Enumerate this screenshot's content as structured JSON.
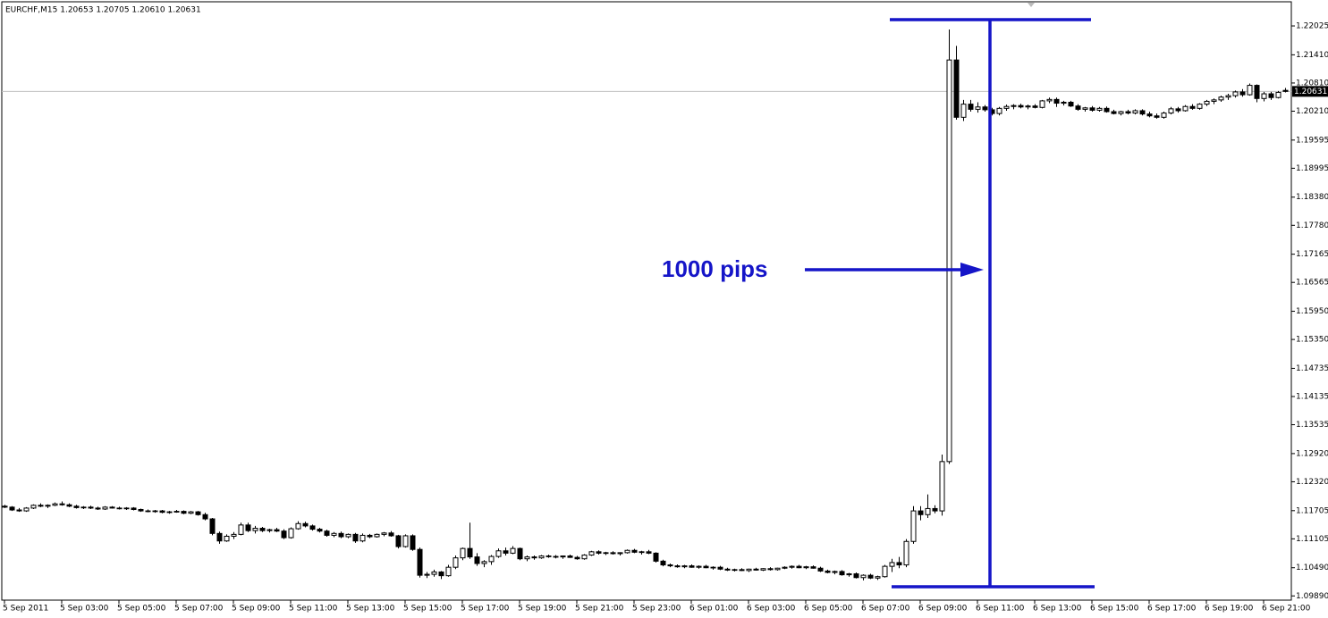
{
  "chart_data": {
    "type": "candlestick",
    "header": "EURCHF,M15  1.20653 1.20705 1.20610 1.20631",
    "annotation": "1000 pips",
    "bid": 1.20631,
    "ylim": [
      1.098,
      1.2252
    ],
    "yticks": [
      1.22025,
      {
        "value": 1.2141,
        "label": "1.21410"
      },
      {
        "value": 1.2081,
        "label": "1.20810"
      },
      {
        "value": 1.2021,
        "label": "1.20210"
      },
      1.19595,
      1.18995,
      {
        "value": 1.1838,
        "label": "1.18380"
      },
      {
        "value": 1.1778,
        "label": "1.17780"
      },
      1.17165,
      1.16565,
      {
        "value": 1.1595,
        "label": "1.15950"
      },
      {
        "value": 1.1535,
        "label": "1.15350"
      },
      1.14735,
      1.14135,
      1.13535,
      {
        "value": 1.1292,
        "label": "1.12920"
      },
      {
        "value": 1.1232,
        "label": "1.12320"
      },
      1.11705,
      1.11105,
      {
        "value": 1.1049,
        "label": "1.10490"
      },
      {
        "value": 1.0989,
        "label": "1.09890"
      }
    ],
    "xlim": [
      0,
      180
    ],
    "xticks": [
      {
        "value": 0,
        "label": "5 Sep 2011"
      },
      {
        "value": 8,
        "label": "5 Sep 03:00"
      },
      {
        "value": 16,
        "label": "5 Sep 05:00"
      },
      {
        "value": 24,
        "label": "5 Sep 07:00"
      },
      {
        "value": 32,
        "label": "5 Sep 09:00"
      },
      {
        "value": 40,
        "label": "5 Sep 11:00"
      },
      {
        "value": 48,
        "label": "5 Sep 13:00"
      },
      {
        "value": 56,
        "label": "5 Sep 15:00"
      },
      {
        "value": 64,
        "label": "5 Sep 17:00"
      },
      {
        "value": 72,
        "label": "5 Sep 19:00"
      },
      {
        "value": 80,
        "label": "5 Sep 21:00"
      },
      {
        "value": 88,
        "label": "5 Sep 23:00"
      },
      {
        "value": 96,
        "label": "6 Sep 01:00"
      },
      {
        "value": 104,
        "label": "6 Sep 03:00"
      },
      {
        "value": 112,
        "label": "6 Sep 05:00"
      },
      {
        "value": 120,
        "label": "6 Sep 07:00"
      },
      {
        "value": 128,
        "label": "6 Sep 09:00"
      },
      {
        "value": 136,
        "label": "6 Sep 11:00"
      },
      {
        "value": 144,
        "label": "6 Sep 13:00"
      },
      {
        "value": 152,
        "label": "6 Sep 15:00"
      },
      {
        "value": 160,
        "label": "6 Sep 17:00"
      },
      {
        "value": 168,
        "label": "6 Sep 19:00"
      },
      {
        "value": 176,
        "label": "6 Sep 21:00"
      }
    ],
    "ohlc": [
      [
        1.118,
        1.1183,
        1.1176,
        1.1178
      ],
      [
        1.1178,
        1.118,
        1.117,
        1.1172
      ],
      [
        1.1172,
        1.1176,
        1.1168,
        1.117
      ],
      [
        1.117,
        1.1178,
        1.1168,
        1.1176
      ],
      [
        1.1176,
        1.1184,
        1.1174,
        1.1182
      ],
      [
        1.1182,
        1.1186,
        1.1178,
        1.118
      ],
      [
        1.118,
        1.1184,
        1.1176,
        1.1182
      ],
      [
        1.1182,
        1.1188,
        1.118,
        1.1185
      ],
      [
        1.1185,
        1.119,
        1.1181,
        1.1183
      ],
      [
        1.1183,
        1.1186,
        1.1178,
        1.118
      ],
      [
        1.118,
        1.1183,
        1.1175,
        1.1177
      ],
      [
        1.1177,
        1.118,
        1.1174,
        1.1178
      ],
      [
        1.1178,
        1.1181,
        1.1174,
        1.1176
      ],
      [
        1.1176,
        1.1179,
        1.1172,
        1.1174
      ],
      [
        1.1174,
        1.118,
        1.1172,
        1.1178
      ],
      [
        1.1178,
        1.118,
        1.1175,
        1.1176
      ],
      [
        1.1176,
        1.1179,
        1.1173,
        1.1175
      ],
      [
        1.1175,
        1.1178,
        1.1172,
        1.1176
      ],
      [
        1.1176,
        1.1178,
        1.1171,
        1.1173
      ],
      [
        1.1173,
        1.1175,
        1.1168,
        1.117
      ],
      [
        1.117,
        1.1173,
        1.1167,
        1.1169
      ],
      [
        1.1169,
        1.1172,
        1.1166,
        1.117
      ],
      [
        1.117,
        1.1172,
        1.1165,
        1.1167
      ],
      [
        1.1167,
        1.117,
        1.1164,
        1.1168
      ],
      [
        1.1168,
        1.1172,
        1.1166,
        1.1169
      ],
      [
        1.1169,
        1.1171,
        1.1163,
        1.1165
      ],
      [
        1.1165,
        1.117,
        1.1163,
        1.1168
      ],
      [
        1.1168,
        1.117,
        1.116,
        1.1162
      ],
      [
        1.1162,
        1.1166,
        1.115,
        1.1153
      ],
      [
        1.1153,
        1.1155,
        1.1118,
        1.1122
      ],
      [
        1.1122,
        1.1126,
        1.11,
        1.1106
      ],
      [
        1.1106,
        1.112,
        1.1104,
        1.1116
      ],
      [
        1.1116,
        1.1125,
        1.111,
        1.112
      ],
      [
        1.112,
        1.1145,
        1.1118,
        1.114
      ],
      [
        1.114,
        1.1145,
        1.1125,
        1.1128
      ],
      [
        1.1128,
        1.1138,
        1.1122,
        1.1133
      ],
      [
        1.1133,
        1.1136,
        1.1125,
        1.1128
      ],
      [
        1.1128,
        1.1132,
        1.1124,
        1.113
      ],
      [
        1.113,
        1.1134,
        1.1125,
        1.1127
      ],
      [
        1.1127,
        1.1131,
        1.111,
        1.1113
      ],
      [
        1.1113,
        1.1135,
        1.1111,
        1.1132
      ],
      [
        1.1132,
        1.1148,
        1.113,
        1.1143
      ],
      [
        1.1143,
        1.1147,
        1.1135,
        1.1138
      ],
      [
        1.1138,
        1.1141,
        1.1128,
        1.1131
      ],
      [
        1.1131,
        1.1134,
        1.1124,
        1.1127
      ],
      [
        1.1127,
        1.113,
        1.1115,
        1.1118
      ],
      [
        1.1118,
        1.1125,
        1.1114,
        1.1122
      ],
      [
        1.1122,
        1.1126,
        1.1112,
        1.1115
      ],
      [
        1.1115,
        1.1122,
        1.1112,
        1.112
      ],
      [
        1.112,
        1.1123,
        1.1102,
        1.1106
      ],
      [
        1.1106,
        1.1122,
        1.1103,
        1.1118
      ],
      [
        1.1118,
        1.1121,
        1.1112,
        1.1115
      ],
      [
        1.1115,
        1.1122,
        1.1113,
        1.112
      ],
      [
        1.112,
        1.1125,
        1.1116,
        1.1123
      ],
      [
        1.1123,
        1.1127,
        1.1115,
        1.1117
      ],
      [
        1.1117,
        1.1119,
        1.109,
        1.1094
      ],
      [
        1.1094,
        1.112,
        1.1092,
        1.1117
      ],
      [
        1.1117,
        1.112,
        1.1085,
        1.1088
      ],
      [
        1.1088,
        1.1092,
        1.1028,
        1.1033
      ],
      [
        1.1033,
        1.104,
        1.1027,
        1.1035
      ],
      [
        1.1035,
        1.1045,
        1.103,
        1.104
      ],
      [
        1.104,
        1.1042,
        1.1025,
        1.1032
      ],
      [
        1.1032,
        1.1055,
        1.103,
        1.105
      ],
      [
        1.105,
        1.1075,
        1.1046,
        1.107
      ],
      [
        1.107,
        1.1092,
        1.1065,
        1.109
      ],
      [
        1.109,
        1.1145,
        1.1068,
        1.1072
      ],
      [
        1.1072,
        1.108,
        1.1053,
        1.1058
      ],
      [
        1.1058,
        1.1065,
        1.105,
        1.1062
      ],
      [
        1.1062,
        1.1076,
        1.1055,
        1.1073
      ],
      [
        1.1073,
        1.109,
        1.107,
        1.1085
      ],
      [
        1.1085,
        1.1092,
        1.1075,
        1.108
      ],
      [
        1.108,
        1.1095,
        1.1078,
        1.109
      ],
      [
        1.109,
        1.1092,
        1.1065,
        1.1068
      ],
      [
        1.1068,
        1.1075,
        1.1063,
        1.1072
      ],
      [
        1.1072,
        1.1075,
        1.1066,
        1.107
      ],
      [
        1.107,
        1.1076,
        1.1068,
        1.1074
      ],
      [
        1.1074,
        1.1077,
        1.107,
        1.1073
      ],
      [
        1.1073,
        1.1076,
        1.1069,
        1.1072
      ],
      [
        1.1072,
        1.1075,
        1.1068,
        1.1074
      ],
      [
        1.1074,
        1.1077,
        1.107,
        1.1071
      ],
      [
        1.1071,
        1.1074,
        1.1066,
        1.1068
      ],
      [
        1.1068,
        1.1078,
        1.1066,
        1.1076
      ],
      [
        1.1076,
        1.1085,
        1.1074,
        1.1083
      ],
      [
        1.1083,
        1.1086,
        1.1077,
        1.108
      ],
      [
        1.108,
        1.1083,
        1.1076,
        1.1081
      ],
      [
        1.1081,
        1.1084,
        1.1077,
        1.1079
      ],
      [
        1.1079,
        1.1082,
        1.1075,
        1.1081
      ],
      [
        1.1081,
        1.1088,
        1.1079,
        1.1086
      ],
      [
        1.1086,
        1.1089,
        1.108,
        1.1082
      ],
      [
        1.1082,
        1.1085,
        1.1077,
        1.1083
      ],
      [
        1.1083,
        1.1087,
        1.1078,
        1.108
      ],
      [
        1.108,
        1.1082,
        1.106,
        1.1063
      ],
      [
        1.1063,
        1.1066,
        1.1052,
        1.1055
      ],
      [
        1.1055,
        1.1058,
        1.105,
        1.1053
      ],
      [
        1.1053,
        1.1056,
        1.1049,
        1.1051
      ],
      [
        1.1051,
        1.1055,
        1.1048,
        1.1053
      ],
      [
        1.1053,
        1.1056,
        1.1049,
        1.105
      ],
      [
        1.105,
        1.1054,
        1.1047,
        1.1052
      ],
      [
        1.1052,
        1.1055,
        1.1048,
        1.1049
      ],
      [
        1.1049,
        1.1052,
        1.1045,
        1.105
      ],
      [
        1.105,
        1.1053,
        1.1044,
        1.1046
      ],
      [
        1.1046,
        1.1049,
        1.1042,
        1.1044
      ],
      [
        1.1044,
        1.1047,
        1.1041,
        1.1045
      ],
      [
        1.1045,
        1.1048,
        1.1042,
        1.1043
      ],
      [
        1.1043,
        1.1047,
        1.104,
        1.1046
      ],
      [
        1.1046,
        1.1049,
        1.1043,
        1.1044
      ],
      [
        1.1044,
        1.1048,
        1.1042,
        1.1047
      ],
      [
        1.1047,
        1.105,
        1.1043,
        1.1045
      ],
      [
        1.1045,
        1.1049,
        1.1043,
        1.1048
      ],
      [
        1.1048,
        1.1052,
        1.1046,
        1.105
      ],
      [
        1.105,
        1.1054,
        1.1047,
        1.1052
      ],
      [
        1.1052,
        1.1055,
        1.1048,
        1.1049
      ],
      [
        1.1049,
        1.1053,
        1.1046,
        1.1051
      ],
      [
        1.1051,
        1.1054,
        1.1047,
        1.1048
      ],
      [
        1.1048,
        1.1051,
        1.104,
        1.1042
      ],
      [
        1.1042,
        1.1045,
        1.1037,
        1.1039
      ],
      [
        1.1039,
        1.1043,
        1.1035,
        1.1041
      ],
      [
        1.1041,
        1.1044,
        1.1032,
        1.1034
      ],
      [
        1.1034,
        1.1038,
        1.103,
        1.1036
      ],
      [
        1.1036,
        1.1039,
        1.1026,
        1.1028
      ],
      [
        1.1028,
        1.1035,
        1.1022,
        1.1033
      ],
      [
        1.1033,
        1.1036,
        1.1025,
        1.1027
      ],
      [
        1.1027,
        1.1032,
        1.1023,
        1.103
      ],
      [
        1.103,
        1.1055,
        1.1028,
        1.1052
      ],
      [
        1.1052,
        1.1068,
        1.104,
        1.106
      ],
      [
        1.106,
        1.1072,
        1.1048,
        1.1055
      ],
      [
        1.1055,
        1.111,
        1.105,
        1.1105
      ],
      [
        1.1105,
        1.118,
        1.11,
        1.117
      ],
      [
        1.117,
        1.118,
        1.115,
        1.1162
      ],
      [
        1.1162,
        1.1205,
        1.1155,
        1.1175
      ],
      [
        1.1175,
        1.1182,
        1.1165,
        1.117
      ],
      [
        1.117,
        1.129,
        1.116,
        1.1275
      ],
      [
        1.1275,
        1.2195,
        1.127,
        1.213
      ],
      [
        1.213,
        1.216,
        1.2003,
        1.2008
      ],
      [
        1.2008,
        1.2045,
        1.2,
        1.2036
      ],
      [
        1.2036,
        1.2045,
        1.202,
        1.2025
      ],
      [
        1.2025,
        1.204,
        1.2018,
        1.203
      ],
      [
        1.203,
        1.2034,
        1.202,
        1.2024
      ],
      [
        1.2024,
        1.2028,
        1.2012,
        1.2016
      ],
      [
        1.2016,
        1.203,
        1.2012,
        1.2027
      ],
      [
        1.2027,
        1.2035,
        1.2022,
        1.2031
      ],
      [
        1.2031,
        1.2036,
        1.2025,
        1.2033
      ],
      [
        1.2033,
        1.2037,
        1.2027,
        1.203
      ],
      [
        1.203,
        1.2035,
        1.2025,
        1.2032
      ],
      [
        1.2032,
        1.2036,
        1.2027,
        1.2029
      ],
      [
        1.2029,
        1.2045,
        1.2027,
        1.2043
      ],
      [
        1.2043,
        1.205,
        1.2038,
        1.2046
      ],
      [
        1.2046,
        1.205,
        1.203,
        1.2038
      ],
      [
        1.2038,
        1.2043,
        1.2033,
        1.204
      ],
      [
        1.204,
        1.2043,
        1.203,
        1.2032
      ],
      [
        1.2032,
        1.2036,
        1.2022,
        1.2025
      ],
      [
        1.2025,
        1.203,
        1.202,
        1.2028
      ],
      [
        1.2028,
        1.2032,
        1.202,
        1.2023
      ],
      [
        1.2023,
        1.203,
        1.202,
        1.2027
      ],
      [
        1.2027,
        1.2031,
        1.2018,
        1.202
      ],
      [
        1.202,
        1.2024,
        1.2014,
        1.2016
      ],
      [
        1.2016,
        1.2022,
        1.2012,
        1.202
      ],
      [
        1.202,
        1.2024,
        1.2014,
        1.2017
      ],
      [
        1.2017,
        1.2025,
        1.2014,
        1.2022
      ],
      [
        1.2022,
        1.2025,
        1.2012,
        1.2015
      ],
      [
        1.2015,
        1.202,
        1.2008,
        1.2011
      ],
      [
        1.2011,
        1.2016,
        1.2005,
        1.2008
      ],
      [
        1.2008,
        1.202,
        1.2005,
        1.2017
      ],
      [
        1.2017,
        1.203,
        1.2014,
        1.2026
      ],
      [
        1.2026,
        1.203,
        1.2018,
        1.2022
      ],
      [
        1.2022,
        1.2034,
        1.202,
        1.2031
      ],
      [
        1.2031,
        1.2036,
        1.2024,
        1.2027
      ],
      [
        1.2027,
        1.2038,
        1.2024,
        1.2036
      ],
      [
        1.2036,
        1.2045,
        1.2032,
        1.2042
      ],
      [
        1.2042,
        1.2048,
        1.2036,
        1.2045
      ],
      [
        1.2045,
        1.2054,
        1.2041,
        1.2051
      ],
      [
        1.2051,
        1.2058,
        1.2045,
        1.2054
      ],
      [
        1.2054,
        1.2065,
        1.205,
        1.2062
      ],
      [
        1.2062,
        1.2068,
        1.2052,
        1.2056
      ],
      [
        1.2056,
        1.208,
        1.2054,
        1.2076
      ],
      [
        1.2076,
        1.2078,
        1.204,
        1.2048
      ],
      [
        1.2048,
        1.2062,
        1.2042,
        1.2058
      ],
      [
        1.2058,
        1.2062,
        1.2045,
        1.205
      ],
      [
        1.205,
        1.2064,
        1.2048,
        1.2061
      ],
      [
        1.20653,
        1.20705,
        1.2061,
        1.20631
      ]
    ]
  }
}
